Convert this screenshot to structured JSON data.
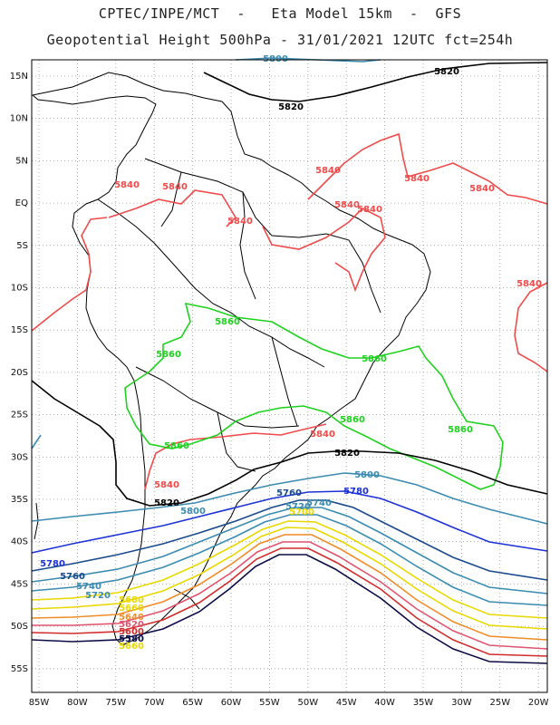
{
  "header": {
    "line1": "CPTEC/INPE/MCT  -   Eta Model 15km  -  GFS",
    "line2": "Geopotential Height 500hPa - 31/01/2021 12UTC fct=254h"
  },
  "map": {
    "lon_labels": [
      "85W",
      "80W",
      "75W",
      "70W",
      "65W",
      "60W",
      "55W",
      "50W",
      "45W",
      "40W",
      "35W",
      "30W",
      "25W",
      "20W"
    ],
    "lat_labels": [
      "15N",
      "10N",
      "5N",
      "EQ",
      "5S",
      "10S",
      "15S",
      "20S",
      "25S",
      "30S",
      "35S",
      "40S",
      "45S",
      "50S",
      "55S"
    ],
    "grid": "dotted",
    "contour_colors": {
      "5580": "#0b0b45",
      "5600": "#d12c2c",
      "5620": "#e0546f",
      "5640": "#f08c28",
      "5660": "#e9d800",
      "5680": "#e9d800",
      "5700": "#e9d800",
      "5720": "#3b8bb0",
      "5740": "#3b8bb0",
      "5760": "#1a4a8c",
      "5780": "#1c32d6",
      "5800": "#3b8bb0",
      "5820": "#000000",
      "5840": "#ef4b4b",
      "5860": "#1fd11f"
    },
    "contour_labels": [
      {
        "text": "5820",
        "color": "#000000"
      },
      {
        "text": "5820",
        "color": "#000000"
      },
      {
        "text": "5820",
        "color": "#000000"
      },
      {
        "text": "5820",
        "color": "#000000"
      },
      {
        "text": "5840",
        "color": "#ef4b4b"
      },
      {
        "text": "5840",
        "color": "#ef4b4b"
      },
      {
        "text": "5840",
        "color": "#ef4b4b"
      },
      {
        "text": "5840",
        "color": "#ef4b4b"
      },
      {
        "text": "5840",
        "color": "#ef4b4b"
      },
      {
        "text": "5840",
        "color": "#ef4b4b"
      },
      {
        "text": "5840",
        "color": "#ef4b4b"
      },
      {
        "text": "5840",
        "color": "#ef4b4b"
      },
      {
        "text": "5840",
        "color": "#ef4b4b"
      },
      {
        "text": "5840",
        "color": "#ef4b4b"
      },
      {
        "text": "5840",
        "color": "#ef4b4b"
      },
      {
        "text": "5860",
        "color": "#1fd11f"
      },
      {
        "text": "5860",
        "color": "#1fd11f"
      },
      {
        "text": "5860",
        "color": "#1fd11f"
      },
      {
        "text": "5860",
        "color": "#1fd11f"
      },
      {
        "text": "5860",
        "color": "#1fd11f"
      },
      {
        "text": "5860",
        "color": "#1fd11f"
      },
      {
        "text": "5800",
        "color": "#3b8bb0"
      },
      {
        "text": "5800",
        "color": "#3b8bb0"
      },
      {
        "text": "5800",
        "color": "#3b8bb0"
      },
      {
        "text": "5780",
        "color": "#1c32d6"
      },
      {
        "text": "5780",
        "color": "#1c32d6"
      },
      {
        "text": "5760",
        "color": "#1a4a8c"
      },
      {
        "text": "5760",
        "color": "#1a4a8c"
      },
      {
        "text": "5740",
        "color": "#3b8bb0"
      },
      {
        "text": "5740",
        "color": "#3b8bb0"
      },
      {
        "text": "5720",
        "color": "#3b8bb0"
      },
      {
        "text": "5720",
        "color": "#3b8bb0"
      },
      {
        "text": "5700",
        "color": "#e9d800"
      },
      {
        "text": "5680",
        "color": "#e9d800"
      },
      {
        "text": "5660",
        "color": "#e9d800"
      },
      {
        "text": "5640",
        "color": "#f08c28"
      },
      {
        "text": "5620",
        "color": "#e0546f"
      },
      {
        "text": "5600",
        "color": "#d12c2c"
      },
      {
        "text": "5580",
        "color": "#0b0b45"
      },
      {
        "text": "5660",
        "color": "#e9d800"
      }
    ]
  }
}
